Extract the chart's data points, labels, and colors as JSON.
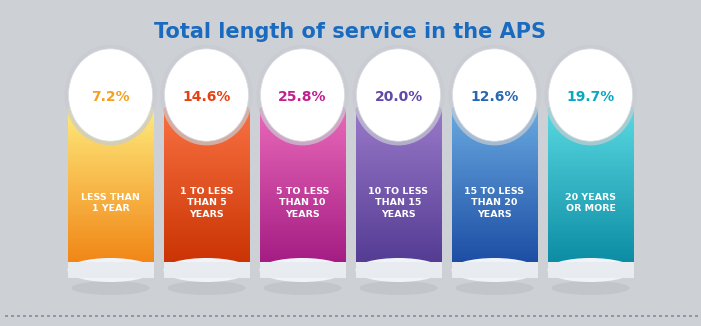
{
  "title": "Total length of service in the APS",
  "title_color": "#1a6bbf",
  "background_color": "#cdd1d6",
  "bars": [
    {
      "percentage": "7.2%",
      "label": "LESS THAN\n1 YEAR",
      "pct_color": "#f5a020",
      "bar_color_top": "#fde97a",
      "bar_color_mid": "#f9c040",
      "bar_color_bottom": "#f08010"
    },
    {
      "percentage": "14.6%",
      "label": "1 TO LESS\nTHAN 5\nYEARS",
      "pct_color": "#e84010",
      "bar_color_top": "#f87040",
      "bar_color_mid": "#f05020",
      "bar_color_bottom": "#c83000"
    },
    {
      "percentage": "25.8%",
      "label": "5 TO LESS\nTHAN 10\nYEARS",
      "pct_color": "#c02090",
      "bar_color_top": "#e868b8",
      "bar_color_mid": "#d030a0",
      "bar_color_bottom": "#a01880"
    },
    {
      "percentage": "20.0%",
      "label": "10 TO LESS\nTHAN 15\nYEARS",
      "pct_color": "#6048a8",
      "bar_color_top": "#9878c8",
      "bar_color_mid": "#7858b8",
      "bar_color_bottom": "#503890"
    },
    {
      "percentage": "12.6%",
      "label": "15 TO LESS\nTHAN 20\nYEARS",
      "pct_color": "#2868b0",
      "bar_color_top": "#68a8e0",
      "bar_color_mid": "#3878c0",
      "bar_color_bottom": "#1848a0"
    },
    {
      "percentage": "19.7%",
      "label": "20 YEARS\nOR MORE",
      "pct_color": "#08a8c0",
      "bar_color_top": "#58d8e0",
      "bar_color_mid": "#20b8c8",
      "bar_color_bottom": "#0888a0"
    }
  ]
}
